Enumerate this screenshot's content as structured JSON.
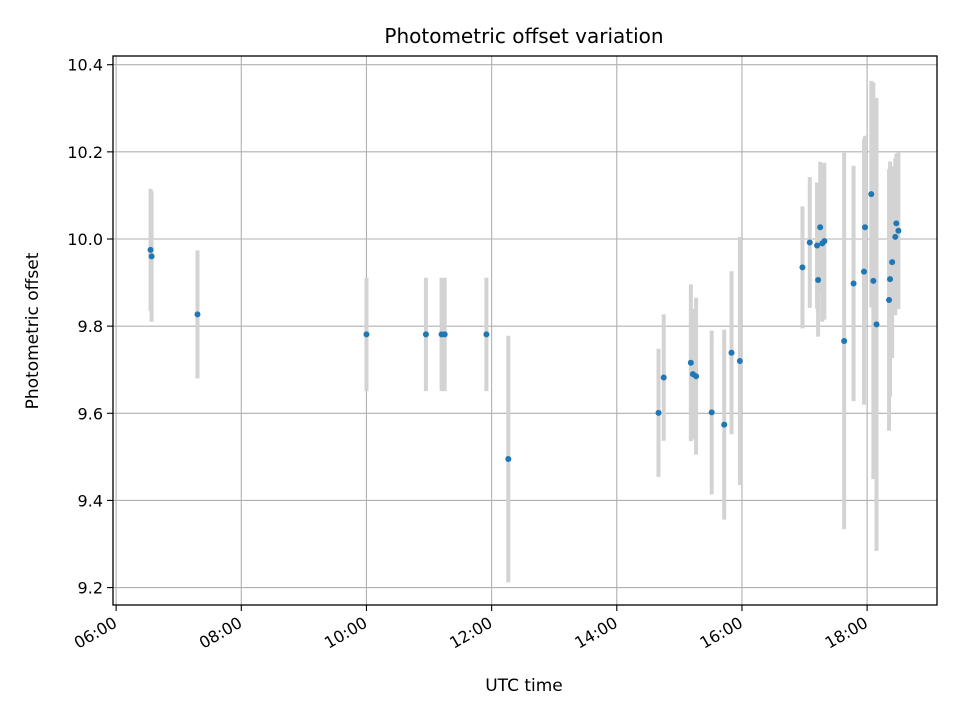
{
  "chart_data": {
    "type": "scatter",
    "title": "Photometric offset variation",
    "xlabel": "UTC time",
    "ylabel": "Photometric offset",
    "x_unit": "UTC time (HH:MM)",
    "xlim": [
      "05:57",
      "19:07"
    ],
    "ylim": [
      9.16,
      10.42
    ],
    "x_ticks": [
      "06:00",
      "08:00",
      "10:00",
      "12:00",
      "14:00",
      "16:00",
      "18:00"
    ],
    "y_ticks": [
      "9.2",
      "9.4",
      "9.6",
      "9.8",
      "10.0",
      "10.2",
      "10.4"
    ],
    "grid": true,
    "point_color": "#1f77b4",
    "errorbar_color": "#d3d3d3",
    "points": [
      {
        "x": "06:33",
        "y": 9.975,
        "err": 0.14
      },
      {
        "x": "06:34",
        "y": 9.96,
        "err": 0.15
      },
      {
        "x": "07:18",
        "y": 9.827,
        "err": 0.147
      },
      {
        "x": "10:00",
        "y": 9.781,
        "err": 0.13
      },
      {
        "x": "10:57",
        "y": 9.781,
        "err": 0.13
      },
      {
        "x": "11:12",
        "y": 9.781,
        "err": 0.13
      },
      {
        "x": "11:15",
        "y": 9.781,
        "err": 0.13
      },
      {
        "x": "11:55",
        "y": 9.781,
        "err": 0.13
      },
      {
        "x": "12:16",
        "y": 9.495,
        "err": 0.283
      },
      {
        "x": "14:40",
        "y": 9.601,
        "err": 0.147
      },
      {
        "x": "14:45",
        "y": 9.682,
        "err": 0.145
      },
      {
        "x": "15:11",
        "y": 9.716,
        "err": 0.18
      },
      {
        "x": "15:13",
        "y": 9.69,
        "err": 0.15
      },
      {
        "x": "15:16",
        "y": 9.685,
        "err": 0.18
      },
      {
        "x": "15:31",
        "y": 9.602,
        "err": 0.188
      },
      {
        "x": "15:43",
        "y": 9.574,
        "err": 0.218
      },
      {
        "x": "15:50",
        "y": 9.739,
        "err": 0.187
      },
      {
        "x": "15:58",
        "y": 9.72,
        "err": 0.285
      },
      {
        "x": "16:58",
        "y": 9.935,
        "err": 0.14
      },
      {
        "x": "17:05",
        "y": 9.992,
        "err": 0.15
      },
      {
        "x": "17:12",
        "y": 9.985,
        "err": 0.145
      },
      {
        "x": "17:13",
        "y": 9.906,
        "err": 0.13
      },
      {
        "x": "17:15",
        "y": 10.027,
        "err": 0.15
      },
      {
        "x": "17:17",
        "y": 9.99,
        "err": 0.18
      },
      {
        "x": "17:19",
        "y": 9.995,
        "err": 0.18
      },
      {
        "x": "17:38",
        "y": 9.766,
        "err": 0.432
      },
      {
        "x": "17:47",
        "y": 9.898,
        "err": 0.27
      },
      {
        "x": "17:57",
        "y": 9.925,
        "err": 0.305
      },
      {
        "x": "17:58",
        "y": 10.027,
        "err": 0.21
      },
      {
        "x": "18:04",
        "y": 10.103,
        "err": 0.26
      },
      {
        "x": "18:06",
        "y": 9.904,
        "err": 0.455
      },
      {
        "x": "18:09",
        "y": 9.804,
        "err": 0.52
      },
      {
        "x": "18:21",
        "y": 9.86,
        "err": 0.3
      },
      {
        "x": "18:22",
        "y": 9.908,
        "err": 0.27
      },
      {
        "x": "18:24",
        "y": 9.947,
        "err": 0.22
      },
      {
        "x": "18:27",
        "y": 10.005,
        "err": 0.18
      },
      {
        "x": "18:28",
        "y": 10.036,
        "err": 0.16
      },
      {
        "x": "18:30",
        "y": 10.019,
        "err": 0.18
      }
    ]
  }
}
